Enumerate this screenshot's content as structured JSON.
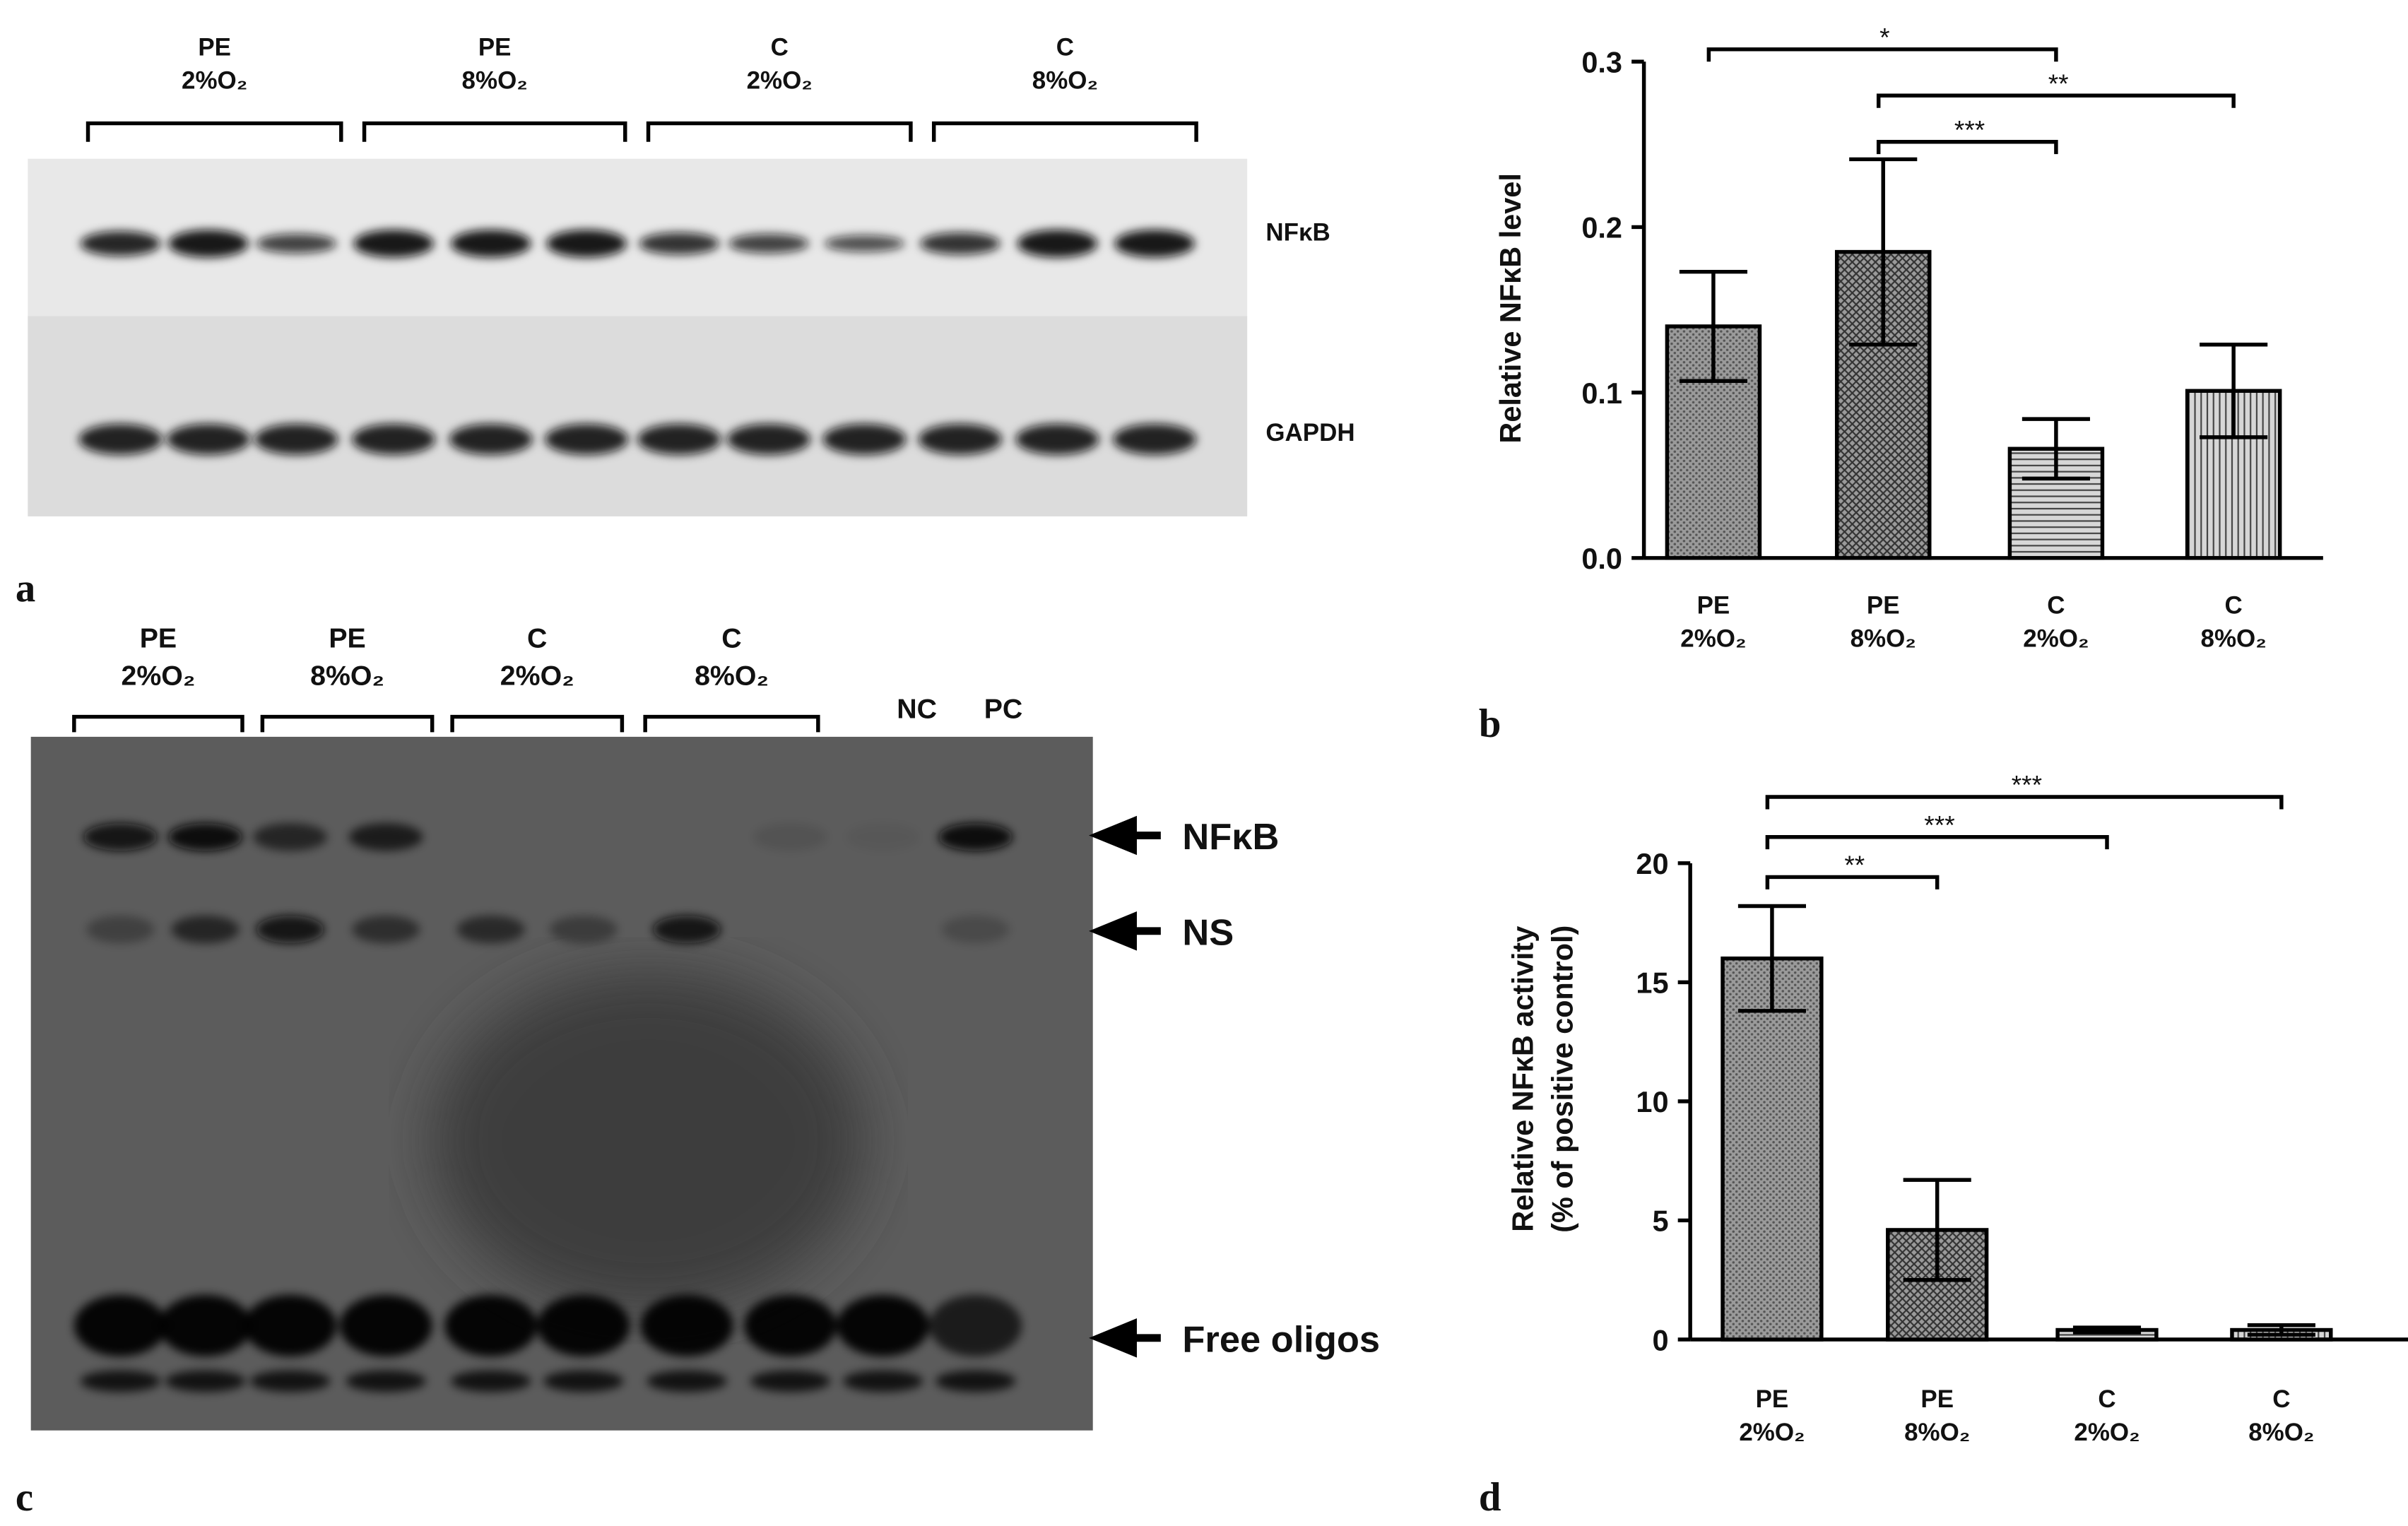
{
  "chart_data": [
    {
      "type": "bar",
      "panel": "b",
      "ylabel": "Relative NFκB level",
      "categories": [
        "PE\n2%O₂",
        "PE\n8%O₂",
        "C\n2%O₂",
        "C\n8%O₂"
      ],
      "values": [
        0.14,
        0.185,
        0.066,
        0.101
      ],
      "errors": [
        0.033,
        0.056,
        0.018,
        0.028
      ],
      "color": "#9a9a9a",
      "ylim": [
        0,
        0.3
      ],
      "yticks": [
        {
          "value": 0,
          "label": "0.0"
        },
        {
          "value": 0.1,
          "label": "0.1"
        },
        {
          "value": 0.2,
          "label": "0.2"
        },
        {
          "value": 0.3,
          "label": "0.3"
        }
      ],
      "annotations": [
        {
          "text": "*",
          "between": [
            "PE\n2%O₂",
            "C\n2%O₂"
          ]
        },
        {
          "text": "**",
          "between": [
            "PE\n8%O₂",
            "C\n8%O₂"
          ]
        },
        {
          "text": "***",
          "between": [
            "PE\n8%O₂",
            "C\n2%O₂"
          ]
        }
      ]
    },
    {
      "type": "bar",
      "panel": "d",
      "ylabel": "Relative NFκB activity\n(% of positive control)",
      "categories": [
        "PE\n2%O₂",
        "PE\n8%O₂",
        "C\n2%O₂",
        "C\n8%O₂"
      ],
      "values": [
        16,
        4.6,
        0.4,
        0.4
      ],
      "errors": [
        2.2,
        2.1,
        0.1,
        0.2
      ],
      "color": "#9a9a9a",
      "ylim": [
        0,
        20
      ],
      "yticks": [
        0,
        5,
        10,
        15,
        20
      ],
      "annotations": [
        {
          "text": "***",
          "between": [
            "PE\n2%O₂",
            "C\n8%O₂"
          ]
        },
        {
          "text": "***",
          "between": [
            "PE\n2%O₂",
            "C\n2%O₂"
          ]
        },
        {
          "text": "**",
          "between": [
            "PE\n2%O₂",
            "PE\n8%O₂"
          ]
        }
      ]
    }
  ],
  "blot_a": {
    "panel": "a",
    "groups": [
      "PE\n2%O₂",
      "PE\n8%O₂",
      "C\n2%O₂",
      "C\n8%O₂"
    ],
    "rows": [
      "NFκB",
      "GAPDH"
    ]
  },
  "blot_c": {
    "panel": "c",
    "groups": [
      "PE\n2%O₂",
      "PE\n8%O₂",
      "C\n2%O₂",
      "C\n8%O₂"
    ],
    "controls": [
      "NC",
      "PC"
    ],
    "arrows": [
      "NFκB",
      "NS",
      "Free oligos"
    ]
  }
}
